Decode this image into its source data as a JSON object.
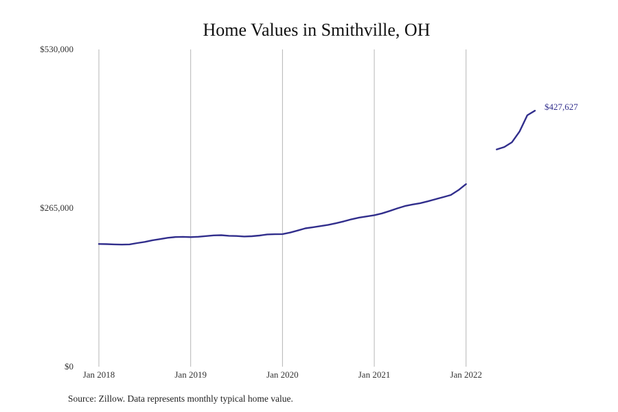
{
  "chart_data": {
    "type": "line",
    "title": "Home Values in Smithville, OH",
    "xlabel": "",
    "ylabel": "",
    "ylim": [
      0,
      530000
    ],
    "xlim": [
      "2018-01",
      "2022-12"
    ],
    "grid": "vertical",
    "y_ticks": [
      {
        "value": 0,
        "label": "$0"
      },
      {
        "value": 265000,
        "label": "$265,000"
      },
      {
        "value": 530000,
        "label": "$530,000"
      }
    ],
    "x_ticks": [
      {
        "value": "2018-01",
        "label": "Jan 2018"
      },
      {
        "value": "2019-01",
        "label": "Jan 2019"
      },
      {
        "value": "2020-01",
        "label": "Jan 2020"
      },
      {
        "value": "2021-01",
        "label": "Jan 2021"
      },
      {
        "value": "2022-01",
        "label": "Jan 2022"
      }
    ],
    "end_label": "$427,627",
    "color": "#312e8c",
    "series": [
      {
        "segments": [
          [
            [
              "2018-01",
              205000
            ],
            [
              "2018-02",
              204800
            ],
            [
              "2018-03",
              204300
            ],
            [
              "2018-04",
              204000
            ],
            [
              "2018-05",
              204300
            ],
            [
              "2018-06",
              206500
            ],
            [
              "2018-07",
              208500
            ],
            [
              "2018-08",
              211200
            ],
            [
              "2018-09",
              213200
            ],
            [
              "2018-10",
              215300
            ],
            [
              "2018-11",
              216600
            ],
            [
              "2018-12",
              216900
            ],
            [
              "2019-01",
              216500
            ],
            [
              "2019-02",
              217000
            ],
            [
              "2019-03",
              218200
            ],
            [
              "2019-04",
              219300
            ],
            [
              "2019-05",
              219700
            ],
            [
              "2019-06",
              218700
            ],
            [
              "2019-07",
              218300
            ],
            [
              "2019-08",
              217500
            ],
            [
              "2019-09",
              218000
            ],
            [
              "2019-10",
              219100
            ],
            [
              "2019-11",
              220900
            ],
            [
              "2019-12",
              221300
            ],
            [
              "2020-01",
              221500
            ],
            [
              "2020-02",
              224100
            ],
            [
              "2020-03",
              227500
            ],
            [
              "2020-04",
              231200
            ],
            [
              "2020-05",
              233000
            ],
            [
              "2020-06",
              235000
            ],
            [
              "2020-07",
              237000
            ],
            [
              "2020-08",
              239600
            ],
            [
              "2020-09",
              242800
            ],
            [
              "2020-10",
              246200
            ],
            [
              "2020-11",
              249000
            ],
            [
              "2020-12",
              251000
            ],
            [
              "2021-01",
              253100
            ],
            [
              "2021-02",
              256100
            ],
            [
              "2021-03",
              260100
            ],
            [
              "2021-04",
              264400
            ],
            [
              "2021-05",
              268300
            ],
            [
              "2021-06",
              271000
            ],
            [
              "2021-07",
              273200
            ],
            [
              "2021-08",
              276200
            ],
            [
              "2021-09",
              279800
            ],
            [
              "2021-10",
              283200
            ],
            [
              "2021-11",
              286800
            ],
            [
              "2021-12",
              294900
            ],
            [
              "2022-01",
              305000
            ]
          ],
          [
            [
              "2022-05",
              363000
            ],
            [
              "2022-06",
              367000
            ],
            [
              "2022-07",
              375000
            ],
            [
              "2022-08",
              393000
            ],
            [
              "2022-09",
              420000
            ],
            [
              "2022-10",
              427627
            ]
          ]
        ]
      }
    ]
  },
  "footer": {
    "source": "Source: Zillow. Data represents monthly typical home value."
  }
}
